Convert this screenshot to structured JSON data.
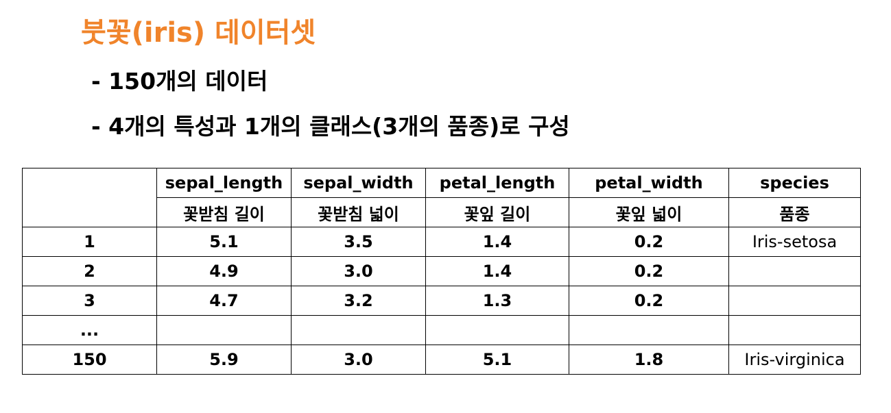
{
  "title": "붓꽃(iris) 데이터셋",
  "bullets": [
    "- 150개의 데이터",
    "- 4개의 특성과 1개의 클래스(3개의 품종)로 구성"
  ],
  "colors": {
    "title": "#F0842B",
    "text": "#000000",
    "border": "#000000"
  },
  "table": {
    "columns": [
      {
        "name": "",
        "korean": ""
      },
      {
        "name": "sepal_length",
        "korean": "꽃받침 길이"
      },
      {
        "name": "sepal_width",
        "korean": "꽃받침 넓이"
      },
      {
        "name": "petal_length",
        "korean": "꽃잎 길이"
      },
      {
        "name": "petal_width",
        "korean": "꽃잎 넓이"
      },
      {
        "name": "species",
        "korean": "품종"
      }
    ],
    "rows": [
      {
        "id": "1",
        "sepal_length": "5.1",
        "sepal_width": "3.5",
        "petal_length": "1.4",
        "petal_width": "0.2",
        "species": "Iris-setosa"
      },
      {
        "id": "2",
        "sepal_length": "4.9",
        "sepal_width": "3.0",
        "petal_length": "1.4",
        "petal_width": "0.2",
        "species": ""
      },
      {
        "id": "3",
        "sepal_length": "4.7",
        "sepal_width": "3.2",
        "petal_length": "1.3",
        "petal_width": "0.2",
        "species": ""
      },
      {
        "id": "...",
        "sepal_length": "",
        "sepal_width": "",
        "petal_length": "",
        "petal_width": "",
        "species": ""
      },
      {
        "id": "150",
        "sepal_length": "5.9",
        "sepal_width": "3.0",
        "petal_length": "5.1",
        "petal_width": "1.8",
        "species": "Iris-virginica"
      }
    ]
  }
}
